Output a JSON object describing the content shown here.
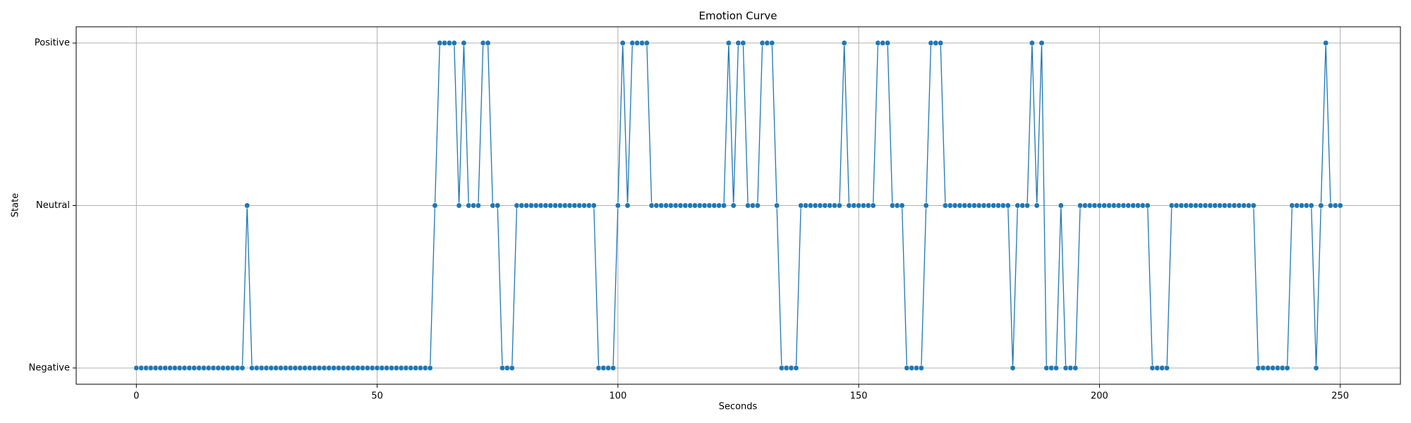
{
  "chart_data": {
    "type": "line",
    "title": "Emotion Curve",
    "x_label": "Seconds",
    "y_label": "State",
    "x": [
      0,
      1,
      2,
      3,
      4,
      5,
      6,
      7,
      8,
      9,
      10,
      11,
      12,
      13,
      14,
      15,
      16,
      17,
      18,
      19,
      20,
      21,
      22,
      23,
      24,
      25,
      26,
      27,
      28,
      29,
      30,
      31,
      32,
      33,
      34,
      35,
      36,
      37,
      38,
      39,
      40,
      41,
      42,
      43,
      44,
      45,
      46,
      47,
      48,
      49,
      50,
      51,
      52,
      53,
      54,
      55,
      56,
      57,
      58,
      59,
      60,
      61,
      62,
      63,
      64,
      65,
      66,
      67,
      68,
      69,
      70,
      71,
      72,
      73,
      74,
      75,
      76,
      77,
      78,
      79,
      80,
      81,
      82,
      83,
      84,
      85,
      86,
      87,
      88,
      89,
      90,
      91,
      92,
      93,
      94,
      95,
      96,
      97,
      98,
      99,
      100,
      101,
      102,
      103,
      104,
      105,
      106,
      107,
      108,
      109,
      110,
      111,
      112,
      113,
      114,
      115,
      116,
      117,
      118,
      119,
      120,
      121,
      122,
      123,
      124,
      125,
      126,
      127,
      128,
      129,
      130,
      131,
      132,
      133,
      134,
      135,
      136,
      137,
      138,
      139,
      140,
      141,
      142,
      143,
      144,
      145,
      146,
      147,
      148,
      149,
      150,
      151,
      152,
      153,
      154,
      155,
      156,
      157,
      158,
      159,
      160,
      161,
      162,
      163,
      164,
      165,
      166,
      167,
      168,
      169,
      170,
      171,
      172,
      173,
      174,
      175,
      176,
      177,
      178,
      179,
      180,
      181,
      182,
      183,
      184,
      185,
      186,
      187,
      188,
      189,
      190,
      191,
      192,
      193,
      194,
      195,
      196,
      197,
      198,
      199,
      200,
      201,
      202,
      203,
      204,
      205,
      206,
      207,
      208,
      209,
      210,
      211,
      212,
      213,
      214,
      215,
      216,
      217,
      218,
      219,
      220,
      221,
      222,
      223,
      224,
      225,
      226,
      227,
      228,
      229,
      230,
      231,
      232,
      233,
      234,
      235,
      236,
      237,
      238,
      239,
      240,
      241,
      242,
      243,
      244,
      245,
      246,
      247,
      248,
      249,
      250
    ],
    "series": [
      {
        "name": "State",
        "color": "#1f77b4",
        "values": [
          0,
          0,
          0,
          0,
          0,
          0,
          0,
          0,
          0,
          0,
          0,
          0,
          0,
          0,
          0,
          0,
          0,
          0,
          0,
          0,
          0,
          0,
          0,
          1,
          0,
          0,
          0,
          0,
          0,
          0,
          0,
          0,
          0,
          0,
          0,
          0,
          0,
          0,
          0,
          0,
          0,
          0,
          0,
          0,
          0,
          0,
          0,
          0,
          0,
          0,
          0,
          0,
          0,
          0,
          0,
          0,
          0,
          0,
          0,
          0,
          0,
          0,
          1,
          2,
          2,
          2,
          2,
          1,
          2,
          1,
          1,
          1,
          2,
          2,
          1,
          1,
          0,
          0,
          0,
          1,
          1,
          1,
          1,
          1,
          1,
          1,
          1,
          1,
          1,
          1,
          1,
          1,
          1,
          1,
          1,
          1,
          0,
          0,
          0,
          0,
          1,
          2,
          1,
          2,
          2,
          2,
          2,
          1,
          1,
          1,
          1,
          1,
          1,
          1,
          1,
          1,
          1,
          1,
          1,
          1,
          1,
          1,
          1,
          2,
          1,
          2,
          2,
          1,
          1,
          1,
          2,
          2,
          2,
          1,
          0,
          0,
          0,
          0,
          1,
          1,
          1,
          1,
          1,
          1,
          1,
          1,
          1,
          2,
          1,
          1,
          1,
          1,
          1,
          1,
          2,
          2,
          2,
          1,
          1,
          1,
          0,
          0,
          0,
          0,
          1,
          2,
          2,
          2,
          1,
          1,
          1,
          1,
          1,
          1,
          1,
          1,
          1,
          1,
          1,
          1,
          1,
          1,
          0,
          1,
          1,
          1,
          2,
          1,
          2,
          0,
          0,
          0,
          1,
          0,
          0,
          0,
          1,
          1,
          1,
          1,
          1,
          1,
          1,
          1,
          1,
          1,
          1,
          1,
          1,
          1,
          1,
          0,
          0,
          0,
          0,
          1,
          1,
          1,
          1,
          1,
          1,
          1,
          1,
          1,
          1,
          1,
          1,
          1,
          1,
          1,
          1,
          1,
          1,
          0,
          0,
          0,
          0,
          0,
          0,
          0,
          1,
          1,
          1,
          1,
          1,
          0,
          1,
          2,
          1,
          1,
          1
        ]
      }
    ],
    "xlim": [
      -12.5,
      262.5
    ],
    "xticks": [
      0,
      50,
      100,
      150,
      200,
      250
    ],
    "ylim": [
      -0.1,
      2.1
    ],
    "yticks": [
      {
        "value": 0,
        "label": "Negative"
      },
      {
        "value": 1,
        "label": "Neutral"
      },
      {
        "value": 2,
        "label": "Positive"
      }
    ],
    "grid": true
  }
}
